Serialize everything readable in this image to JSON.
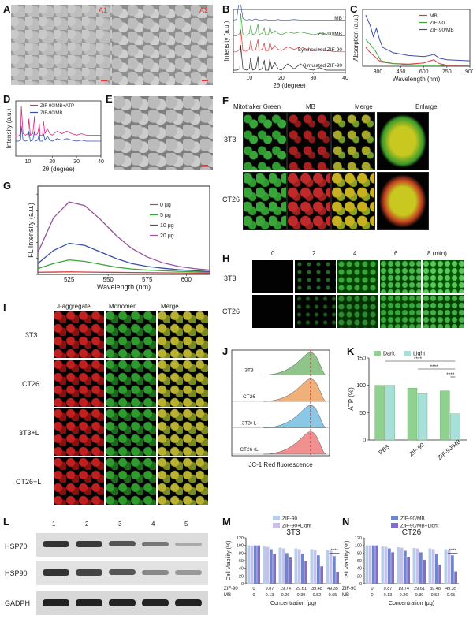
{
  "panels": {
    "A": "A",
    "B": "B",
    "C": "C",
    "D": "D",
    "E": "E",
    "F": "F",
    "G": "G",
    "H": "H",
    "I": "I",
    "J": "J",
    "K": "K",
    "L": "L",
    "M": "M",
    "N": "N"
  },
  "sem_a": {
    "labels": [
      "A1",
      "A2"
    ]
  },
  "colors": {
    "red": "#d9383a",
    "green": "#3aa63a",
    "blue": "#3a4fa6",
    "purple": "#9a4fa0",
    "magenta": "#d02f7c",
    "lightgreen": "#8fd18f",
    "teal": "#a6e0d8"
  },
  "chart_data": [
    {
      "id": "B",
      "type": "line",
      "xlabel": "2θ (degree)",
      "ylabel": "Intensity (a.u.)",
      "xlim": [
        5,
        40
      ],
      "xticks": [
        10,
        20,
        30,
        40
      ],
      "series": [
        {
          "name": "MB",
          "color": "#3a4fa6",
          "x": [
            5,
            6,
            7,
            8,
            9,
            10,
            11,
            12,
            13,
            14,
            15,
            16,
            17,
            18,
            19,
            20,
            22,
            24,
            26,
            28,
            30,
            32,
            34,
            36,
            38,
            40
          ],
          "y": [
            0.1,
            0.12,
            0.9,
            0.15,
            0.1,
            0.12,
            0.1,
            0.14,
            0.1,
            0.1,
            0.12,
            0.1,
            0.1,
            0.1,
            0.12,
            0.1,
            0.1,
            0.12,
            0.1,
            0.1,
            0.1,
            0.1,
            0.1,
            0.1,
            0.1,
            0.1
          ]
        },
        {
          "name": "ZIF-90/MB",
          "color": "#3aa63a",
          "x": [
            5,
            6,
            7,
            7.3,
            8,
            9,
            10,
            10.4,
            11,
            12,
            12.7,
            13,
            14,
            14.7,
            15,
            16,
            16.4,
            17,
            18,
            19,
            20,
            22,
            24,
            26,
            28,
            30,
            32,
            34,
            36,
            38,
            40
          ],
          "y": [
            0.1,
            0.1,
            0.2,
            0.95,
            0.15,
            0.12,
            0.2,
            0.5,
            0.15,
            0.2,
            0.55,
            0.15,
            0.2,
            0.4,
            0.15,
            0.15,
            0.45,
            0.2,
            0.3,
            0.2,
            0.15,
            0.25,
            0.2,
            0.25,
            0.2,
            0.15,
            0.2,
            0.15,
            0.12,
            0.1,
            0.1
          ]
        },
        {
          "name": "Synthesized ZIF-90",
          "color": "#d9383a",
          "x": [
            5,
            6,
            7,
            7.3,
            8,
            9,
            10,
            10.4,
            11,
            12,
            12.7,
            13,
            14,
            14.7,
            15,
            16,
            16.4,
            17,
            18,
            19,
            20,
            22,
            24,
            26,
            28,
            30,
            32,
            34,
            36,
            38,
            40
          ],
          "y": [
            0.1,
            0.1,
            0.2,
            1.0,
            0.15,
            0.12,
            0.2,
            0.55,
            0.15,
            0.2,
            0.6,
            0.15,
            0.2,
            0.45,
            0.15,
            0.15,
            0.5,
            0.2,
            0.35,
            0.2,
            0.15,
            0.3,
            0.2,
            0.3,
            0.2,
            0.15,
            0.2,
            0.15,
            0.12,
            0.1,
            0.1
          ]
        },
        {
          "name": "Simulated ZIF-90",
          "color": "#222222",
          "x": [
            5,
            6,
            7,
            7.3,
            8,
            9,
            10,
            10.4,
            11,
            12,
            12.7,
            13,
            14,
            14.7,
            15,
            16,
            16.4,
            17,
            18,
            19,
            20,
            22,
            24,
            26,
            28,
            30,
            32,
            34,
            36,
            38,
            40
          ],
          "y": [
            0.0,
            0.0,
            0.05,
            1.0,
            0.05,
            0.0,
            0.05,
            0.5,
            0.0,
            0.05,
            0.55,
            0.0,
            0.05,
            0.4,
            0.0,
            0.0,
            0.45,
            0.05,
            0.3,
            0.05,
            0.0,
            0.25,
            0.05,
            0.25,
            0.05,
            0.0,
            0.1,
            0.0,
            0.0,
            0.0,
            0.0
          ]
        }
      ]
    },
    {
      "id": "C",
      "type": "line",
      "xlabel": "Wavelength (nm)",
      "ylabel": "Absorption (a.u.)",
      "xlim": [
        200,
        900
      ],
      "xticks": [
        300,
        450,
        600,
        750,
        900
      ],
      "series": [
        {
          "name": "MB",
          "color": "#d9383a",
          "x": [
            220,
            250,
            280,
            300,
            320,
            400,
            500,
            600,
            640,
            665,
            700,
            750,
            900
          ],
          "y": [
            0.35,
            0.25,
            0.18,
            0.12,
            0.08,
            0.05,
            0.04,
            0.06,
            0.1,
            0.12,
            0.05,
            0.02,
            0.01
          ]
        },
        {
          "name": "ZIF-90",
          "color": "#3aa63a",
          "x": [
            220,
            250,
            280,
            300,
            320,
            400,
            500,
            600,
            640,
            665,
            700,
            750,
            900
          ],
          "y": [
            0.5,
            0.4,
            0.3,
            0.2,
            0.1,
            0.05,
            0.03,
            0.02,
            0.02,
            0.02,
            0.02,
            0.01,
            0.01
          ]
        },
        {
          "name": "ZIF-90/MB",
          "color": "#3a4fa6",
          "x": [
            220,
            250,
            270,
            290,
            310,
            330,
            400,
            500,
            600,
            640,
            665,
            700,
            750,
            900
          ],
          "y": [
            0.95,
            0.75,
            0.55,
            0.7,
            0.5,
            0.35,
            0.25,
            0.2,
            0.18,
            0.2,
            0.22,
            0.15,
            0.12,
            0.1
          ]
        }
      ]
    },
    {
      "id": "D",
      "type": "line",
      "xlabel": "2θ (degree)",
      "ylabel": "Intensity (a.u.)",
      "xlim": [
        5,
        40
      ],
      "xticks": [
        10,
        20,
        30,
        40
      ],
      "series": [
        {
          "name": "ZIF-90/MB+ATP",
          "color": "#d02f7c",
          "x": [
            5,
            6,
            7,
            7.3,
            8,
            9,
            10,
            10.4,
            11,
            12,
            12.7,
            13,
            14,
            14.7,
            15,
            16,
            16.4,
            17,
            18,
            19,
            20,
            22,
            24,
            26,
            28,
            30,
            32,
            34,
            36,
            38,
            40
          ],
          "y": [
            0.4,
            0.4,
            0.45,
            1.0,
            0.45,
            0.42,
            0.45,
            0.75,
            0.42,
            0.45,
            0.8,
            0.42,
            0.45,
            0.65,
            0.42,
            0.42,
            0.7,
            0.45,
            0.55,
            0.45,
            0.42,
            0.5,
            0.45,
            0.5,
            0.45,
            0.42,
            0.45,
            0.42,
            0.42,
            0.42,
            0.42
          ]
        },
        {
          "name": "ZIF-90/MB",
          "color": "#3a4fa6",
          "x": [
            5,
            6,
            7,
            7.3,
            8,
            9,
            10,
            10.4,
            11,
            12,
            12.7,
            13,
            14,
            14.7,
            15,
            16,
            16.4,
            17,
            18,
            19,
            20,
            22,
            24,
            26,
            28,
            30,
            32,
            34,
            36,
            38,
            40
          ],
          "y": [
            0.3,
            0.3,
            0.32,
            0.6,
            0.32,
            0.3,
            0.32,
            0.5,
            0.3,
            0.32,
            0.5,
            0.3,
            0.32,
            0.45,
            0.3,
            0.3,
            0.45,
            0.32,
            0.4,
            0.32,
            0.3,
            0.35,
            0.32,
            0.35,
            0.32,
            0.3,
            0.32,
            0.3,
            0.3,
            0.3,
            0.3
          ]
        }
      ]
    },
    {
      "id": "G",
      "type": "line",
      "xlabel": "Wavelength (nm)",
      "ylabel": "FL Intensity (a.u.)",
      "xlim": [
        505,
        615
      ],
      "xticks": [
        525,
        550,
        575,
        600
      ],
      "series": [
        {
          "name": "0 μg",
          "color": "#d9383a",
          "x": [
            505,
            515,
            525,
            535,
            545,
            555,
            565,
            575,
            585,
            595,
            605,
            615
          ],
          "y": [
            30,
            32,
            35,
            33,
            30,
            28,
            26,
            24,
            22,
            20,
            18,
            17
          ]
        },
        {
          "name": "5 μg",
          "color": "#3aa63a",
          "x": [
            505,
            515,
            525,
            535,
            545,
            555,
            565,
            575,
            585,
            595,
            605,
            615
          ],
          "y": [
            80,
            150,
            200,
            180,
            140,
            100,
            75,
            60,
            50,
            42,
            35,
            30
          ]
        },
        {
          "name": "10 μg",
          "color": "#3a4fa6",
          "x": [
            505,
            515,
            525,
            535,
            545,
            555,
            565,
            575,
            585,
            595,
            605,
            615
          ],
          "y": [
            150,
            330,
            430,
            400,
            310,
            220,
            150,
            110,
            85,
            65,
            50,
            40
          ]
        },
        {
          "name": "20 μg",
          "color": "#9a4fa0",
          "x": [
            505,
            515,
            525,
            535,
            545,
            555,
            565,
            575,
            585,
            595,
            605,
            615
          ],
          "y": [
            300,
            780,
            1000,
            950,
            760,
            540,
            360,
            240,
            160,
            110,
            80,
            60
          ]
        }
      ]
    },
    {
      "id": "J",
      "type": "area",
      "xlabel": "JC-1 Red fluorescence",
      "categories": [
        "3T3",
        "CT26",
        "3T3+L",
        "CT26+L"
      ]
    },
    {
      "id": "K",
      "type": "bar",
      "ylabel": "ATP (%)",
      "ylim": [
        0,
        150
      ],
      "yticks": [
        0,
        50,
        100,
        150
      ],
      "categories": [
        "PBS",
        "ZIF-90",
        "ZIF-90/MB"
      ],
      "series": [
        {
          "name": "Dark",
          "color": "#8fd18f",
          "values": [
            100,
            95,
            90
          ]
        },
        {
          "name": "Light",
          "color": "#a6e0d8",
          "values": [
            100,
            85,
            48
          ]
        }
      ],
      "annotations": [
        "****",
        "****",
        "****"
      ]
    },
    {
      "id": "M",
      "type": "bar",
      "title": "3T3",
      "ylabel": "Cell Viability (%)",
      "xlabel": "Concentration (μg)",
      "ylim": [
        0,
        120
      ],
      "yticks": [
        0,
        20,
        40,
        60,
        80,
        100,
        120
      ],
      "categories": [
        "0",
        "9.87",
        "19.74",
        "29.61",
        "39.48",
        "49.35"
      ],
      "mb_categories": [
        "0",
        "0.13",
        "0.26",
        "0.39",
        "0.52",
        "0.65"
      ],
      "row_labels": [
        "ZIF-90",
        "MB"
      ],
      "series": [
        {
          "name": "ZIF-90",
          "color": "#b8cde8",
          "values": [
            100,
            97,
            94,
            92,
            90,
            88
          ]
        },
        {
          "name": "ZIF-90+Light",
          "color": "#c8c0e8",
          "values": [
            100,
            96,
            92,
            90,
            88,
            86
          ]
        },
        {
          "name": "ZIF-90/MB",
          "color": "#6f86c8",
          "values": [
            100,
            90,
            80,
            78,
            74,
            72
          ]
        },
        {
          "name": "ZIF-90/MB+Light",
          "color": "#7f6fc8",
          "values": [
            100,
            78,
            68,
            60,
            45,
            30
          ]
        }
      ],
      "annotation": "****"
    },
    {
      "id": "N",
      "type": "bar",
      "title": "CT26",
      "ylabel": "Cell Viability (%)",
      "xlabel": "Concentration (μg)",
      "ylim": [
        0,
        120
      ],
      "yticks": [
        0,
        20,
        40,
        60,
        80,
        100,
        120
      ],
      "categories": [
        "0",
        "9.87",
        "19.74",
        "29.61",
        "39.48",
        "49.35"
      ],
      "mb_categories": [
        "0",
        "0.13",
        "0.26",
        "0.39",
        "0.52",
        "0.65"
      ],
      "row_labels": [
        "ZIF-90",
        "MB"
      ],
      "series": [
        {
          "name": "ZIF-90",
          "color": "#b8cde8",
          "values": [
            100,
            97,
            95,
            93,
            92,
            90
          ]
        },
        {
          "name": "ZIF-90+Light",
          "color": "#c8c0e8",
          "values": [
            100,
            96,
            94,
            92,
            90,
            88
          ]
        },
        {
          "name": "ZIF-90/MB",
          "color": "#6f86c8",
          "values": [
            100,
            92,
            86,
            82,
            78,
            74
          ]
        },
        {
          "name": "ZIF-90/MB+Light",
          "color": "#7f6fc8",
          "values": [
            100,
            82,
            70,
            62,
            50,
            32
          ]
        }
      ],
      "annotation": "****"
    }
  ],
  "F": {
    "headers": [
      "Mitotraker Green",
      "MB",
      "Merge",
      "Enlarge"
    ],
    "rows": [
      "3T3",
      "CT26"
    ]
  },
  "H": {
    "times": [
      "0",
      "2",
      "4",
      "6",
      "8 (min)"
    ],
    "rows": [
      "3T3",
      "CT26"
    ]
  },
  "I": {
    "headers": [
      "J-aggregate",
      "Monomer",
      "Merge"
    ],
    "rows": [
      "3T3",
      "CT26",
      "3T3+L",
      "CT26+L"
    ]
  },
  "L": {
    "lanes": [
      "1",
      "2",
      "3",
      "4",
      "5"
    ],
    "rows": [
      "HSP70",
      "HSP90",
      "GADPH"
    ]
  }
}
